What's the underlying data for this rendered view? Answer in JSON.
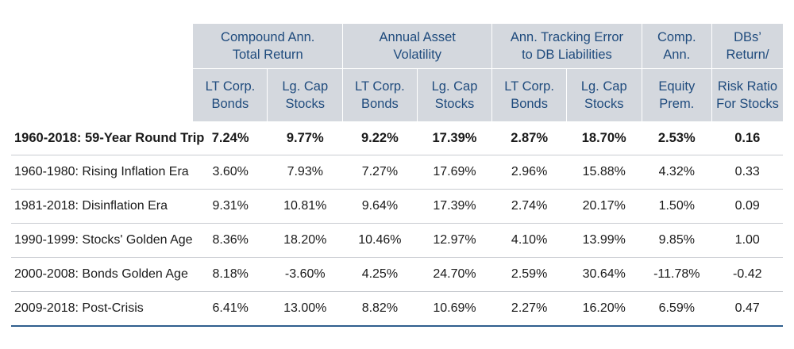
{
  "header": {
    "groups": [
      {
        "line1": "Compound Ann.",
        "line2": "Total Return"
      },
      {
        "line1": "Annual Asset",
        "line2": "Volatility"
      },
      {
        "line1": "Ann. Tracking Error",
        "line2": "to DB Liabilities"
      }
    ],
    "equity_premium": {
      "line1": "Comp.",
      "line2": "Ann."
    },
    "equity_premium_sub": {
      "line1": "Equity",
      "line2": "Prem."
    },
    "dbs_ratio": {
      "line1": "DBs’",
      "line2": "Return/"
    },
    "dbs_ratio_sub": {
      "line1": "Risk Ratio",
      "line2": "For Stocks"
    },
    "sub_columns": [
      {
        "line1": "LT Corp.",
        "line2": "Bonds"
      },
      {
        "line1": "Lg. Cap",
        "line2": "Stocks"
      },
      {
        "line1": "LT Corp.",
        "line2": "Bonds"
      },
      {
        "line1": "Lg. Cap",
        "line2": "Stocks"
      },
      {
        "line1": "LT Corp.",
        "line2": "Bonds"
      },
      {
        "line1": "Lg. Cap",
        "line2": "Stocks"
      }
    ]
  },
  "rows": [
    {
      "label": "1960-2018: 59-Year Round Trip",
      "values": [
        "7.24%",
        "9.77%",
        "9.22%",
        "17.39%",
        "2.87%",
        "18.70%",
        "2.53%",
        "0.16"
      ]
    },
    {
      "label": "1960-1980: Rising Inflation Era",
      "values": [
        "3.60%",
        "7.93%",
        "7.27%",
        "17.69%",
        "2.96%",
        "15.88%",
        "4.32%",
        "0.33"
      ]
    },
    {
      "label": "1981-2018: Disinflation Era",
      "values": [
        "9.31%",
        "10.81%",
        "9.64%",
        "17.39%",
        "2.74%",
        "20.17%",
        "1.50%",
        "0.09"
      ]
    },
    {
      "label": "1990-1999: Stocks' Golden Age",
      "values": [
        "8.36%",
        "18.20%",
        "10.46%",
        "12.97%",
        "4.10%",
        "13.99%",
        "9.85%",
        "1.00"
      ]
    },
    {
      "label": "2000-2008: Bonds Golden Age",
      "values": [
        "8.18%",
        "-3.60%",
        "4.25%",
        "24.70%",
        "2.59%",
        "30.64%",
        "-11.78%",
        "-0.42"
      ]
    },
    {
      "label": "2009-2018: Post-Crisis",
      "values": [
        "6.41%",
        "13.00%",
        "8.82%",
        "10.69%",
        "2.27%",
        "16.20%",
        "6.59%",
        "0.47"
      ]
    }
  ]
}
